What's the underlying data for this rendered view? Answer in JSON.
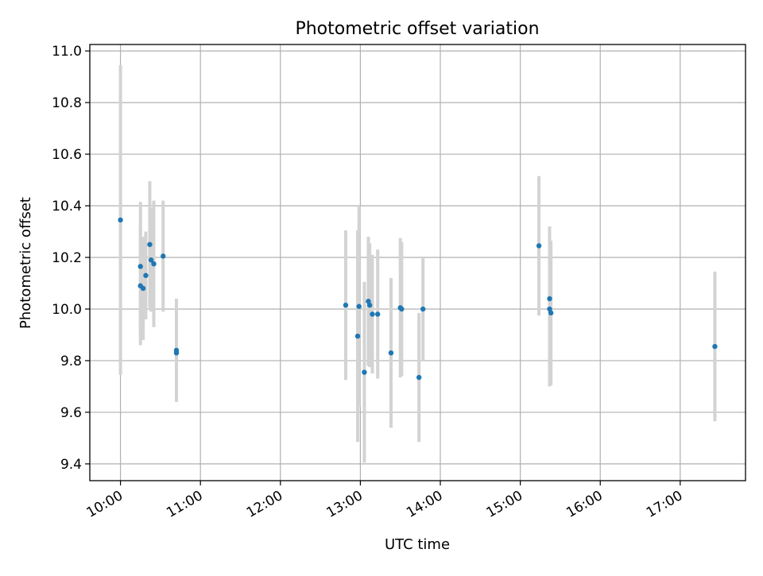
{
  "chart_data": {
    "type": "scatter",
    "title": "Photometric offset variation",
    "xlabel": "UTC time",
    "ylabel": "Photometric offset",
    "x_ticks": [
      "10:00",
      "11:00",
      "12:00",
      "13:00",
      "14:00",
      "15:00",
      "16:00",
      "17:00"
    ],
    "y_ticks": [
      "9.4",
      "9.6",
      "9.8",
      "10.0",
      "10.2",
      "10.4",
      "10.6",
      "10.8",
      "11.0"
    ],
    "xlim": [
      "09:37",
      "17:49"
    ],
    "ylim": [
      9.335,
      11.025
    ],
    "grid": true,
    "legend": "none",
    "point_color": "#1f77b4",
    "errorbar_color": "#d3d3d3",
    "series": [
      {
        "points": [
          {
            "t": "10:00",
            "y": 10.345,
            "err": 0.6
          },
          {
            "t": "10:15",
            "y": 10.09,
            "err": 0.23
          },
          {
            "t": "10:15",
            "y": 10.165,
            "err": 0.25
          },
          {
            "t": "10:17",
            "y": 10.08,
            "err": 0.2
          },
          {
            "t": "10:19",
            "y": 10.13,
            "err": 0.17
          },
          {
            "t": "10:22",
            "y": 10.25,
            "err": 0.245
          },
          {
            "t": "10:23",
            "y": 10.19,
            "err": 0.2
          },
          {
            "t": "10:25",
            "y": 10.175,
            "err": 0.245
          },
          {
            "t": "10:32",
            "y": 10.205,
            "err": 0.215
          },
          {
            "t": "10:42",
            "y": 9.84,
            "err": 0.2
          },
          {
            "t": "10:42",
            "y": 9.83,
            "err": 0.19
          },
          {
            "t": "12:49",
            "y": 10.015,
            "err": 0.29
          },
          {
            "t": "12:58",
            "y": 9.895,
            "err": 0.41
          },
          {
            "t": "12:59",
            "y": 10.01,
            "err": 0.39
          },
          {
            "t": "13:03",
            "y": 9.755,
            "err": 0.35
          },
          {
            "t": "13:06",
            "y": 10.03,
            "err": 0.25
          },
          {
            "t": "13:07",
            "y": 10.015,
            "err": 0.24
          },
          {
            "t": "13:09",
            "y": 9.98,
            "err": 0.23
          },
          {
            "t": "13:13",
            "y": 9.98,
            "err": 0.25
          },
          {
            "t": "13:23",
            "y": 9.83,
            "err": 0.29
          },
          {
            "t": "13:30",
            "y": 10.005,
            "err": 0.27
          },
          {
            "t": "13:31",
            "y": 10.0,
            "err": 0.26
          },
          {
            "t": "13:44",
            "y": 9.735,
            "err": 0.25
          },
          {
            "t": "13:47",
            "y": 10.0,
            "err": 0.2
          },
          {
            "t": "15:14",
            "y": 10.245,
            "err": 0.27
          },
          {
            "t": "15:22",
            "y": 10.04,
            "err": 0.28
          },
          {
            "t": "15:22",
            "y": 10.0,
            "err": 0.3
          },
          {
            "t": "15:23",
            "y": 9.985,
            "err": 0.28
          },
          {
            "t": "17:26",
            "y": 9.855,
            "err": 0.29
          }
        ]
      }
    ]
  }
}
